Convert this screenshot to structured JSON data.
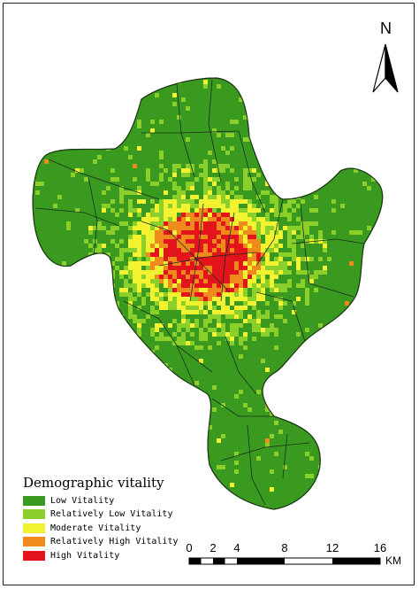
{
  "north": {
    "letter": "N"
  },
  "legend": {
    "title": "Demographic vitality",
    "items": [
      {
        "label": "Low Vitality",
        "color": "#3a9a20"
      },
      {
        "label": "Relatively Low Vitality",
        "color": "#8bd02a"
      },
      {
        "label": "Moderate Vitality",
        "color": "#f2f230"
      },
      {
        "label": "Relatively High Vitality",
        "color": "#f08a1c"
      },
      {
        "label": "High Vitality",
        "color": "#e4141c"
      }
    ]
  },
  "scale_bar": {
    "labels": [
      "0",
      "2",
      "4",
      "8",
      "12",
      "16"
    ],
    "unit": "KM"
  }
}
